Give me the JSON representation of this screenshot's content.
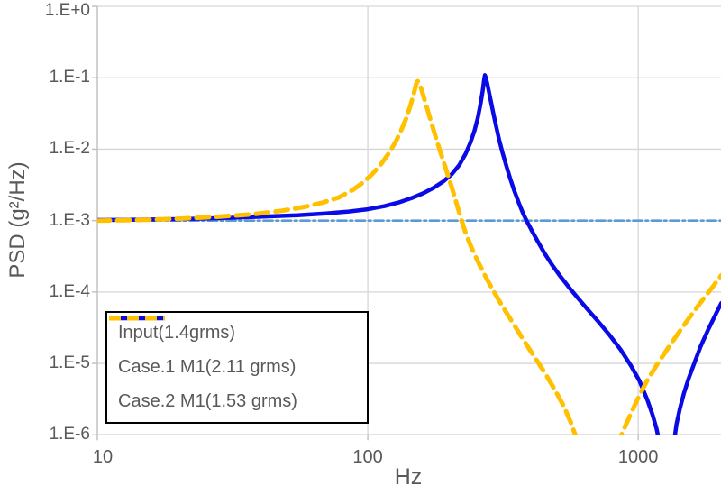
{
  "chart_data": {
    "type": "line",
    "title": "",
    "xlabel": "Hz",
    "ylabel": "PSD (g²/Hz)",
    "x_scale": "log",
    "y_scale": "log",
    "xlim": [
      10,
      2000
    ],
    "ylim": [
      1e-06,
      1
    ],
    "grid": true,
    "legend_position": "bottom-left",
    "colors": {
      "gridline": "#D6D6D6",
      "axis": "#BFBFBF",
      "text": "#595959",
      "legend_border": "#000000"
    },
    "x_ticks": [
      {
        "value": 10,
        "label": "10"
      },
      {
        "value": 100,
        "label": "100"
      },
      {
        "value": 1000,
        "label": "1000"
      }
    ],
    "x_gridlines": [
      100,
      1000
    ],
    "y_ticks": [
      {
        "value": 1,
        "label": "1.E+0"
      },
      {
        "value": 0.1,
        "label": "1.E-1"
      },
      {
        "value": 0.01,
        "label": "1.E-2"
      },
      {
        "value": 0.001,
        "label": "1.E-3"
      },
      {
        "value": 0.0001,
        "label": "1.E-4"
      },
      {
        "value": 1e-05,
        "label": "1.E-5"
      },
      {
        "value": 1e-06,
        "label": "1.E-6"
      }
    ],
    "series": [
      {
        "id": "input",
        "name": "Input(1.4grms)",
        "color": "#5B9BD5",
        "style": "dashdot",
        "dash": "10 4 2.5 4",
        "width": 2.6,
        "points": [
          [
            10,
            0.001
          ],
          [
            2030,
            0.001
          ]
        ]
      },
      {
        "id": "case1",
        "name": "Case.1 M1(2.11 grms)",
        "color": "#0A0AE6",
        "style": "solid",
        "dash": "",
        "width": 4.5,
        "points": [
          [
            10,
            0.00102
          ],
          [
            14,
            0.00103
          ],
          [
            20,
            0.00105
          ],
          [
            28,
            0.00108
          ],
          [
            40,
            0.00113
          ],
          [
            55,
            0.00119
          ],
          [
            70,
            0.00126
          ],
          [
            85,
            0.00134
          ],
          [
            100,
            0.00144
          ],
          [
            115,
            0.00159
          ],
          [
            130,
            0.00179
          ],
          [
            145,
            0.00206
          ],
          [
            160,
            0.0024
          ],
          [
            175,
            0.00287
          ],
          [
            190,
            0.00352
          ],
          [
            205,
            0.00452
          ],
          [
            218,
            0.006
          ],
          [
            230,
            0.0086
          ],
          [
            240,
            0.0126
          ],
          [
            248,
            0.0182
          ],
          [
            255,
            0.0272
          ],
          [
            261,
            0.0425
          ],
          [
            266,
            0.066
          ],
          [
            269,
            0.091
          ],
          [
            271,
            0.109
          ],
          [
            273,
            0.101
          ],
          [
            276,
            0.0855
          ],
          [
            280,
            0.0655
          ],
          [
            285,
            0.0472
          ],
          [
            291,
            0.0322
          ],
          [
            298,
            0.0212
          ],
          [
            306,
            0.0136
          ],
          [
            315,
            0.0089
          ],
          [
            325,
            0.0059
          ],
          [
            336,
            0.0039
          ],
          [
            348,
            0.00262
          ],
          [
            362,
            0.00176
          ],
          [
            376,
            0.00123
          ],
          [
            390,
            0.00093
          ],
          [
            405,
            0.00071
          ],
          [
            425,
            0.00051
          ],
          [
            450,
            0.00035
          ],
          [
            480,
            0.00024
          ],
          [
            515,
            0.000166
          ],
          [
            555,
            0.000116
          ],
          [
            600,
            8.1e-05
          ],
          [
            650,
            5.7e-05
          ],
          [
            710,
            3.9e-05
          ],
          [
            780,
            2.55e-05
          ],
          [
            860,
            1.57e-05
          ],
          [
            940,
            9.3e-06
          ],
          [
            1010,
            5.7e-06
          ],
          [
            1080,
            3.1e-06
          ],
          [
            1130,
            1.9e-06
          ],
          [
            1170,
            1.2e-06
          ],
          [
            1215,
            6e-07
          ],
          [
            1255,
            2.5e-07
          ],
          [
            1285,
            1.5e-07
          ],
          [
            1315,
            3e-07
          ],
          [
            1350,
            7e-07
          ],
          [
            1385,
            1.4e-06
          ],
          [
            1425,
            2.3e-06
          ],
          [
            1475,
            3.8e-06
          ],
          [
            1535,
            6.1e-06
          ],
          [
            1610,
            9.9e-06
          ],
          [
            1700,
            1.72e-05
          ],
          [
            1820,
            3.05e-05
          ],
          [
            1950,
            5.2e-05
          ],
          [
            2030,
            7e-05
          ]
        ]
      },
      {
        "id": "case2",
        "name": "Case.2 M1(1.53 grms)",
        "color": "#FFC000",
        "style": "dashed",
        "dash": "14 8",
        "width": 5,
        "points": [
          [
            10,
            0.001
          ],
          [
            14,
            0.00102
          ],
          [
            20,
            0.00106
          ],
          [
            28,
            0.00113
          ],
          [
            38,
            0.00123
          ],
          [
            48,
            0.00137
          ],
          [
            58,
            0.00155
          ],
          [
            68,
            0.00178
          ],
          [
            78,
            0.0021
          ],
          [
            88,
            0.00268
          ],
          [
            96,
            0.0034
          ],
          [
            104,
            0.0045
          ],
          [
            112,
            0.0062
          ],
          [
            120,
            0.0089
          ],
          [
            127,
            0.0128
          ],
          [
            133,
            0.0185
          ],
          [
            139,
            0.0275
          ],
          [
            144,
            0.0415
          ],
          [
            148,
            0.0605
          ],
          [
            151,
            0.082
          ],
          [
            153,
            0.0895
          ],
          [
            155,
            0.084
          ],
          [
            158,
            0.068
          ],
          [
            162,
            0.0495
          ],
          [
            167,
            0.0338
          ],
          [
            173,
            0.0215
          ],
          [
            180,
            0.0131
          ],
          [
            188,
            0.0078
          ],
          [
            197,
            0.00455
          ],
          [
            206,
            0.00265
          ],
          [
            214,
            0.00163
          ],
          [
            222,
            0.00102
          ],
          [
            231,
            0.00064
          ],
          [
            243,
            0.0004
          ],
          [
            257,
            0.000255
          ],
          [
            273,
            0.000162
          ],
          [
            293,
            0.0001
          ],
          [
            316,
            6.15e-05
          ],
          [
            343,
            3.75e-05
          ],
          [
            373,
            2.25e-05
          ],
          [
            409,
            1.31e-05
          ],
          [
            451,
            7.4e-06
          ],
          [
            493,
            4.2e-06
          ],
          [
            531,
            2.5e-06
          ],
          [
            563,
            1.5e-06
          ],
          [
            591,
            9e-07
          ],
          [
            626,
            4.8e-07
          ],
          [
            661,
            3e-07
          ],
          [
            701,
            2.2e-07
          ],
          [
            741,
            2.8e-07
          ],
          [
            781,
            4.1e-07
          ],
          [
            821,
            6.1e-07
          ],
          [
            861,
            9.5e-07
          ],
          [
            901,
            1.4e-06
          ],
          [
            951,
            2.2e-06
          ],
          [
            1011,
            3.6e-06
          ],
          [
            1081,
            5.8e-06
          ],
          [
            1171,
            9.5e-06
          ],
          [
            1281,
            1.58e-05
          ],
          [
            1401,
            2.59e-05
          ],
          [
            1551,
            4.46e-05
          ],
          [
            1721,
            7.56e-05
          ],
          [
            1881,
            0.000117
          ],
          [
            2030,
            0.000172
          ]
        ]
      }
    ]
  }
}
